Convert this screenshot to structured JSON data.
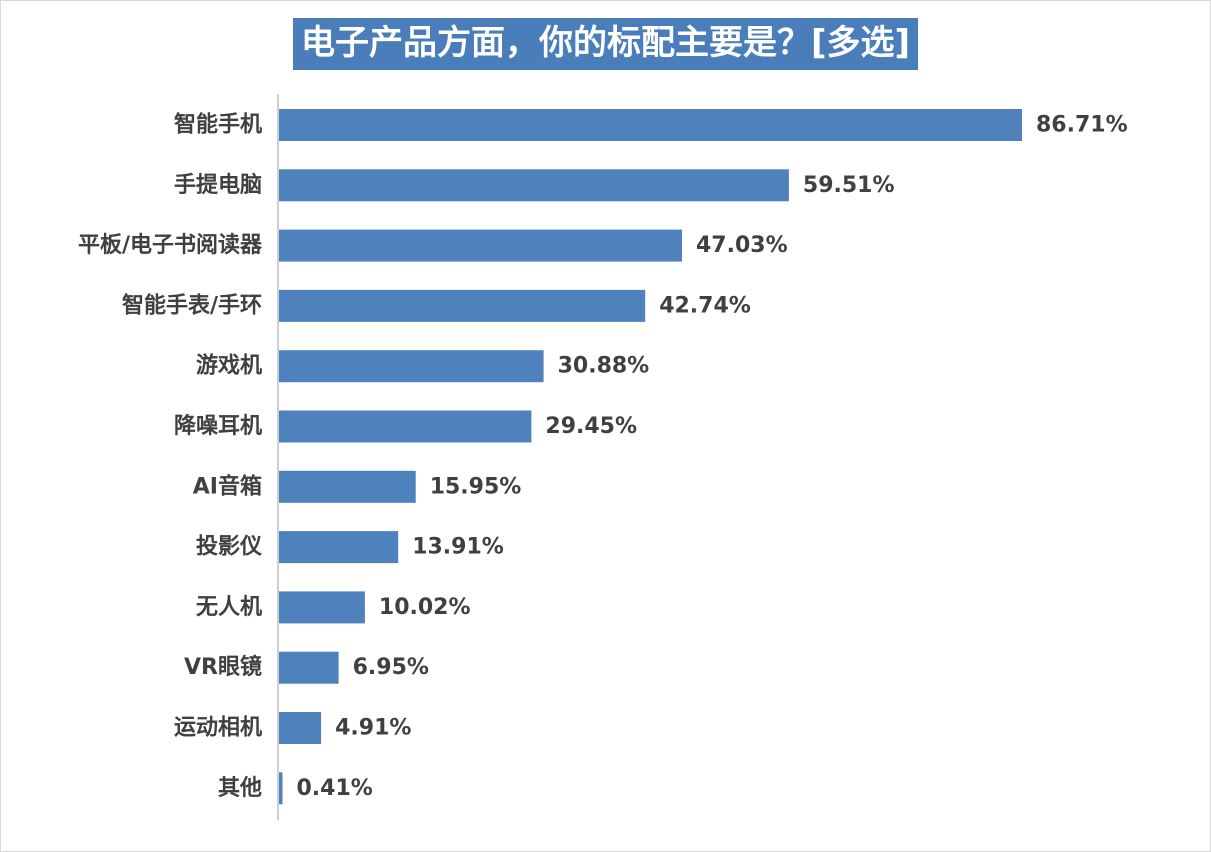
{
  "chart_data": {
    "type": "bar",
    "orientation": "horizontal",
    "title": "电子产品方面，你的标配主要是？[多选]",
    "categories": [
      "智能手机",
      "手提电脑",
      "平板/电子书阅读器",
      "智能手表/手环",
      "游戏机",
      "降噪耳机",
      "AI音箱",
      "投影仪",
      "无人机",
      "VR眼镜",
      "运动相机",
      "其他"
    ],
    "values": [
      86.71,
      59.51,
      47.03,
      42.74,
      30.88,
      29.45,
      15.95,
      13.91,
      10.02,
      6.95,
      4.91,
      0.41
    ],
    "value_labels": [
      "86.71%",
      "59.51%",
      "47.03%",
      "42.74%",
      "30.88%",
      "29.45%",
      "15.95%",
      "13.91%",
      "10.02%",
      "6.95%",
      "4.91%",
      "0.41%"
    ],
    "xlim": [
      0,
      100
    ],
    "unit": "%",
    "grid": false,
    "legend": "none",
    "colors": {
      "bar": "#4f81bd",
      "title_bg": "#4a7ebb",
      "title_text": "#ffffff",
      "axis": "#bfbfbf",
      "label": "#404040"
    }
  }
}
